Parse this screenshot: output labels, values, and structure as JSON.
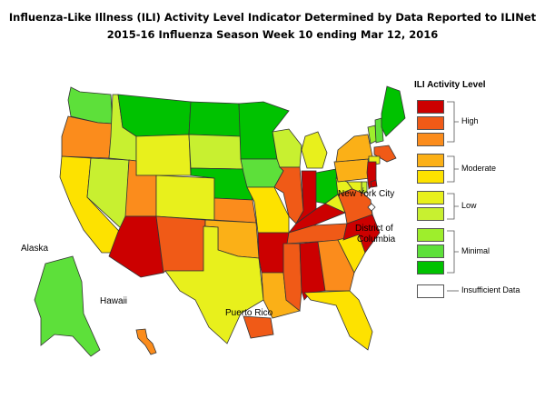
{
  "title": {
    "line1": "Influenza-Like Illness (ILI) Activity Level Indicator Determined by Data Reported to ILINet",
    "line2": "2015-16  Influenza Season Week  10 ending Mar 12, 2016"
  },
  "legend": {
    "title": "ILI Activity Level",
    "levels": [
      {
        "level": 10,
        "color": "#cc0000"
      },
      {
        "level": 9,
        "color": "#f05a17"
      },
      {
        "level": 8,
        "color": "#fb8c1c"
      },
      {
        "level": 7,
        "color": "#fbb017"
      },
      {
        "level": 6,
        "color": "#fde200"
      },
      {
        "level": 5,
        "color": "#e8f01c"
      },
      {
        "level": 4,
        "color": "#c8f030"
      },
      {
        "level": 3,
        "color": "#9eee2c"
      },
      {
        "level": 2,
        "color": "#5de03a"
      },
      {
        "level": 1,
        "color": "#00c200"
      },
      {
        "level": 0,
        "color": "#ffffff"
      }
    ],
    "groups": {
      "high": "High",
      "moderate": "Moderate",
      "low": "Low",
      "minimal": "Minimal",
      "insufficient": "Insufficient Data"
    }
  },
  "map_labels": {
    "nyc": "New York City",
    "dc_line1": "District of",
    "dc_line2": "Columbia",
    "alaska": "Alaska",
    "hawaii": "Hawaii",
    "puerto_rico": "Puerto Rico"
  },
  "states": {
    "WA": 2,
    "OR": 8,
    "CA": 6,
    "NV": 4,
    "ID": 4,
    "MT": 1,
    "WY": 5,
    "UT": 8,
    "AZ": 10,
    "CO": 5,
    "NM": 9,
    "ND": 1,
    "SD": 4,
    "NE": 1,
    "KS": 8,
    "OK": 7,
    "TX": 5,
    "MN": 1,
    "IA": 2,
    "MO": 6,
    "AR": 10,
    "LA": 7,
    "WI": 4,
    "IL": 9,
    "IN": 10,
    "MI": 5,
    "OH": 1,
    "KY": 10,
    "TN": 9,
    "MS": 9,
    "AL": 10,
    "GA": 8,
    "FL": 6,
    "SC": 6,
    "NC": 10,
    "VA": 9,
    "WV": 5,
    "PA": 7,
    "NY": 7,
    "VT": 3,
    "NH": 2,
    "ME": 1,
    "MA": 9,
    "CT": 5,
    "NJ": 10,
    "DE": 4,
    "MD": 5,
    "AK": 2,
    "HI": 8,
    "PR": 9
  }
}
